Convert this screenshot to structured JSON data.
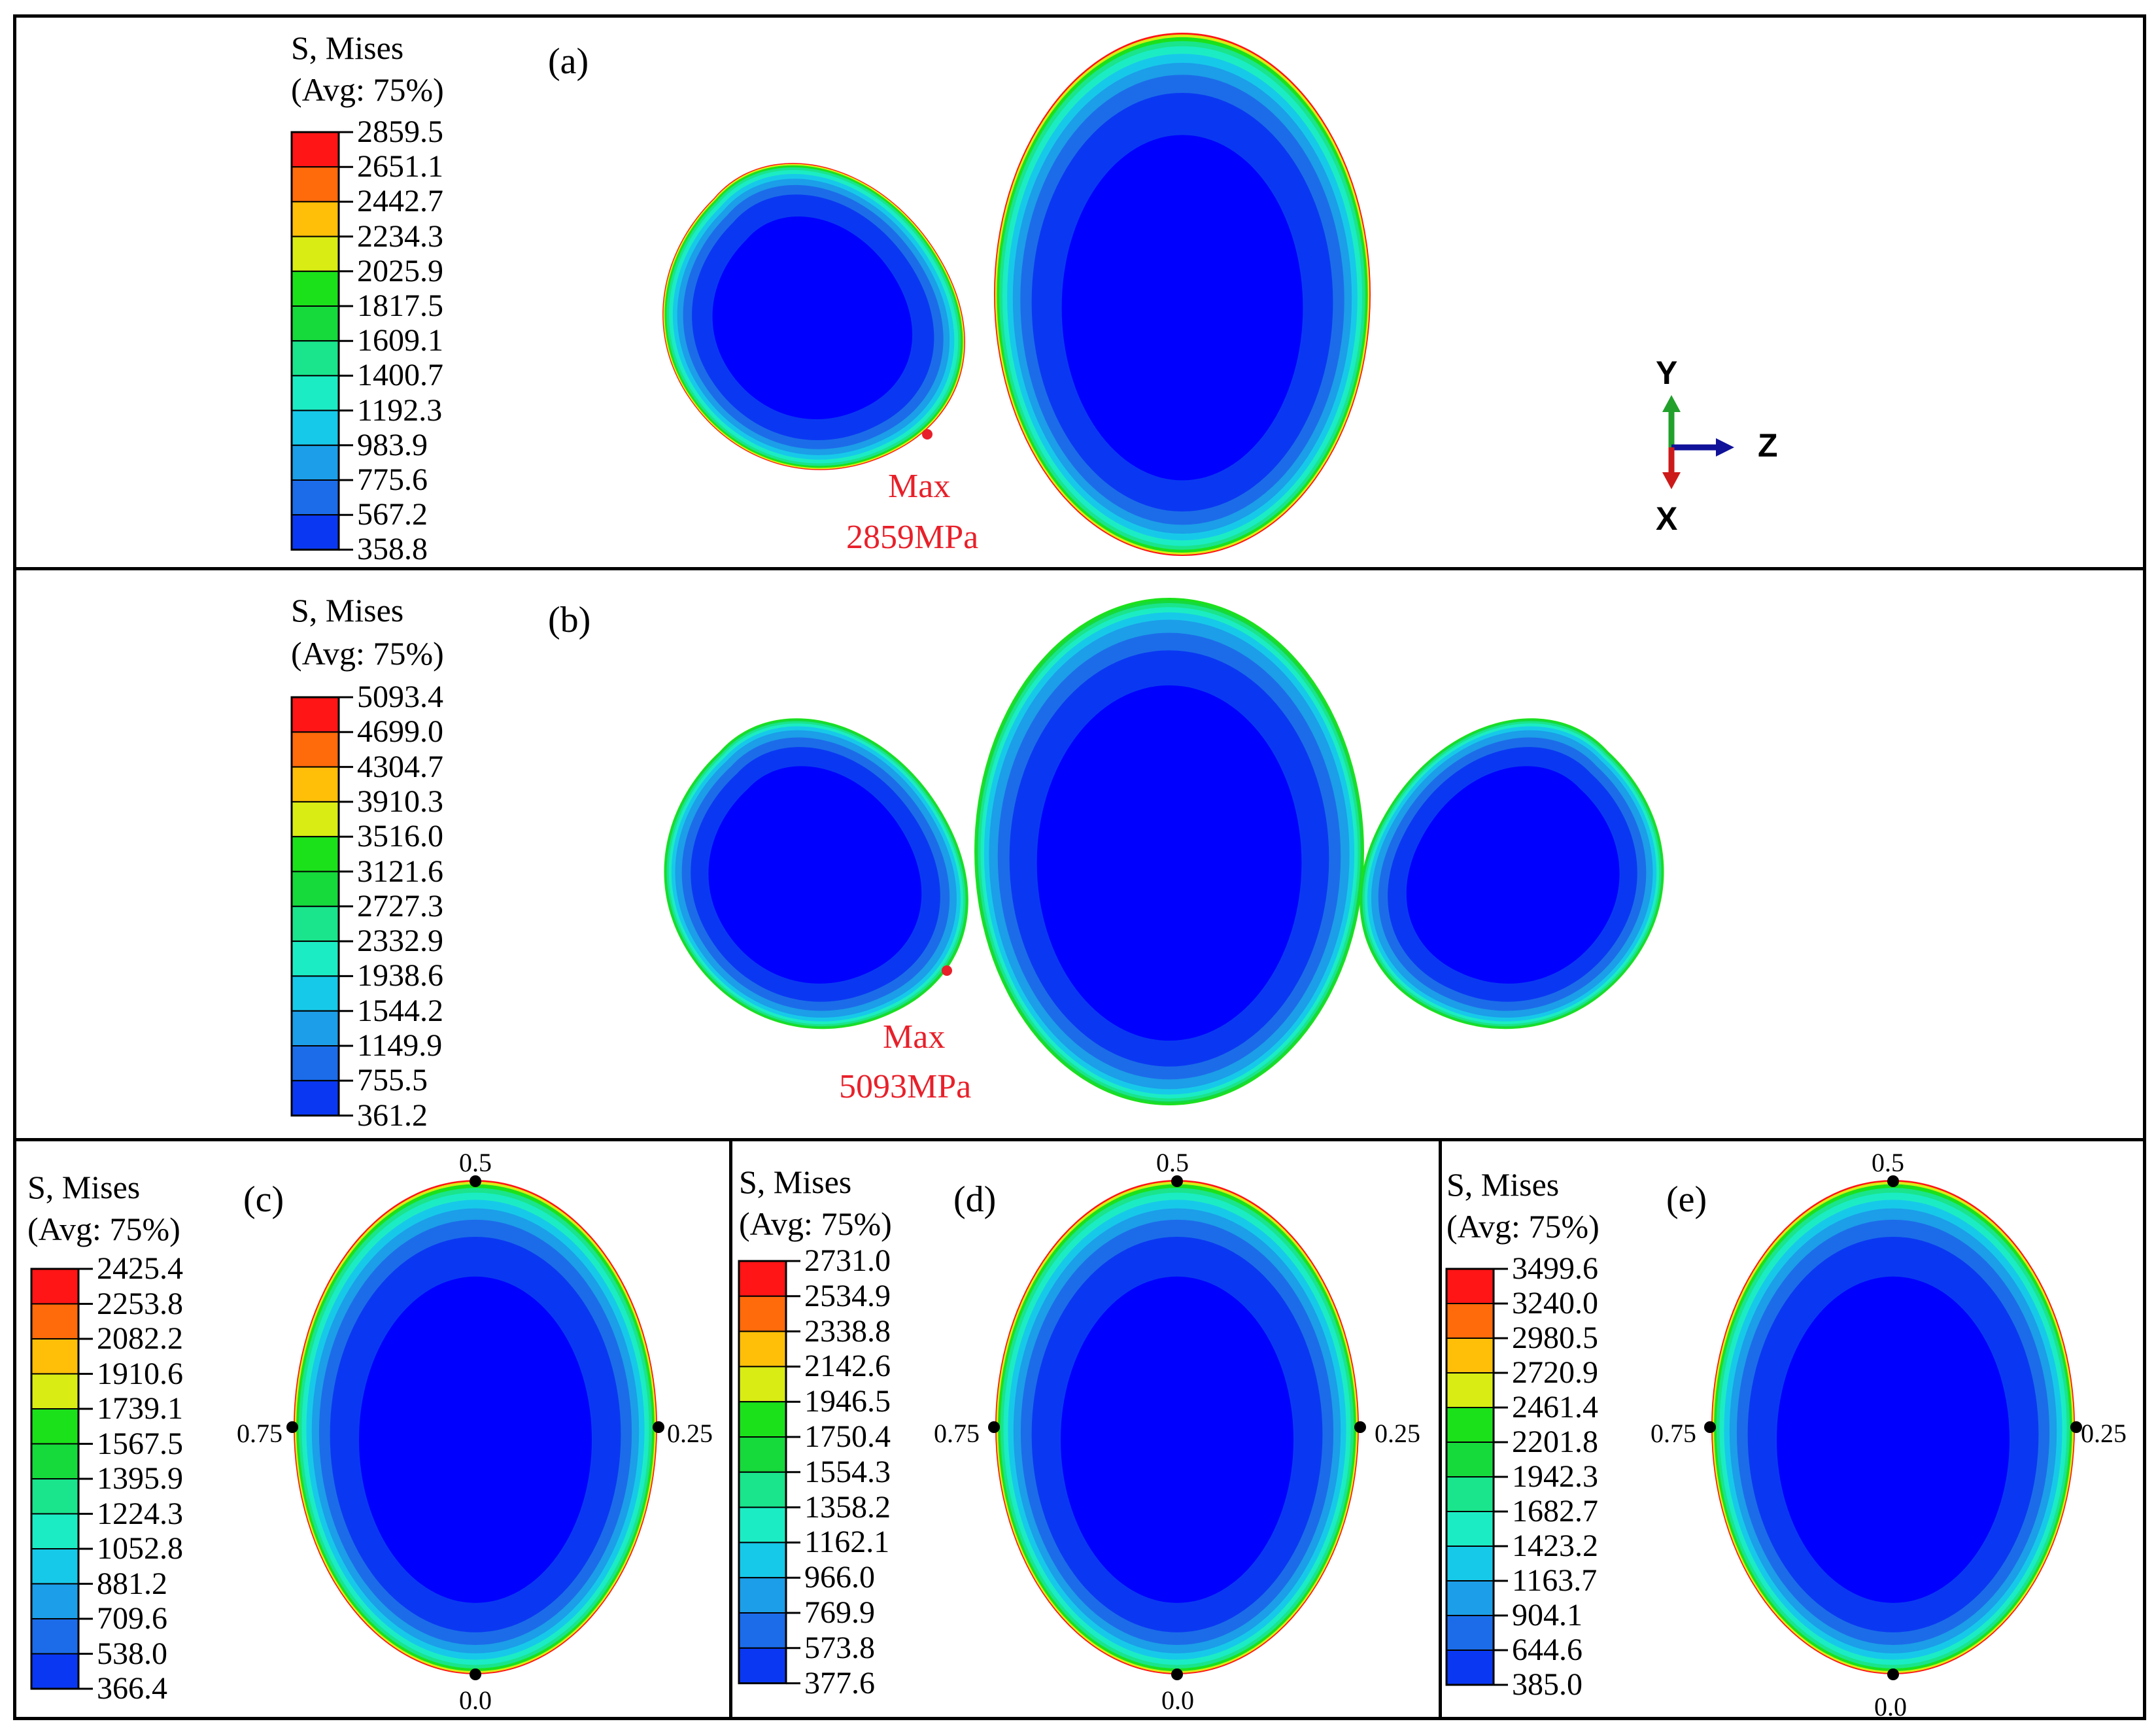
{
  "colors": {
    "scale": [
      "#0000ff",
      "#0a38f2",
      "#1c6ce9",
      "#1c9ee8",
      "#17c9e9",
      "#1cecc4",
      "#1ae48c",
      "#16d93c",
      "#1be11b",
      "#7bdf1c",
      "#d9ec14",
      "#ffbf08",
      "#ff6a0b",
      "#ff1515"
    ],
    "max_marker": "#e8202a",
    "axis_y": "#22a02c",
    "axis_z": "#10129a",
    "axis_x": "#cc1a1a"
  },
  "panels": {
    "a": {
      "label": "(a)",
      "legend_title_1": "S, Mises",
      "legend_title_2": "(Avg: 75%)",
      "ticks": [
        "2859.5",
        "2651.1",
        "2442.7",
        "2234.3",
        "2025.9",
        "1817.5",
        "1609.1",
        "1400.7",
        "1192.3",
        "983.9",
        "775.6",
        "567.2",
        "358.8"
      ],
      "max_line1": "Max",
      "max_line2": "2859MPa",
      "axes": {
        "y": "Y",
        "z": "Z",
        "x": "X"
      }
    },
    "b": {
      "label": "(b)",
      "legend_title_1": "S, Mises",
      "legend_title_2": "(Avg: 75%)",
      "ticks": [
        "5093.4",
        "4699.0",
        "4304.7",
        "3910.3",
        "3516.0",
        "3121.6",
        "2727.3",
        "2332.9",
        "1938.6",
        "1544.2",
        "1149.9",
        "755.5",
        "361.2"
      ],
      "max_line1": "Max",
      "max_line2": "5093MPa"
    },
    "c": {
      "label": "(c)",
      "legend_title_1": "S, Mises",
      "legend_title_2": "(Avg: 75%)",
      "ticks": [
        "2425.4",
        "2253.8",
        "2082.2",
        "1910.6",
        "1739.1",
        "1567.5",
        "1395.9",
        "1224.3",
        "1052.8",
        "881.2",
        "709.6",
        "538.0",
        "366.4"
      ],
      "points": {
        "top": "0.5",
        "left": "0.75",
        "right": "0.25",
        "bottom": "0.0"
      }
    },
    "d": {
      "label": "(d)",
      "legend_title_1": "S, Mises",
      "legend_title_2": "(Avg: 75%)",
      "ticks": [
        "2731.0",
        "2534.9",
        "2338.8",
        "2142.6",
        "1946.5",
        "1750.4",
        "1554.3",
        "1358.2",
        "1162.1",
        "966.0",
        "769.9",
        "573.8",
        "377.6"
      ],
      "points": {
        "top": "0.5",
        "left": "0.75",
        "right": "0.25",
        "bottom": "0.0"
      }
    },
    "e": {
      "label": "(e)",
      "legend_title_1": "S, Mises",
      "legend_title_2": "(Avg: 75%)",
      "ticks": [
        "3499.6",
        "3240.0",
        "2980.5",
        "2720.9",
        "2461.4",
        "2201.8",
        "1942.3",
        "1682.7",
        "1423.2",
        "1163.7",
        "904.1",
        "644.6",
        "385.0"
      ],
      "points": {
        "top": "0.5",
        "left": "0.75",
        "right": "0.25",
        "bottom": "0.0"
      }
    }
  }
}
